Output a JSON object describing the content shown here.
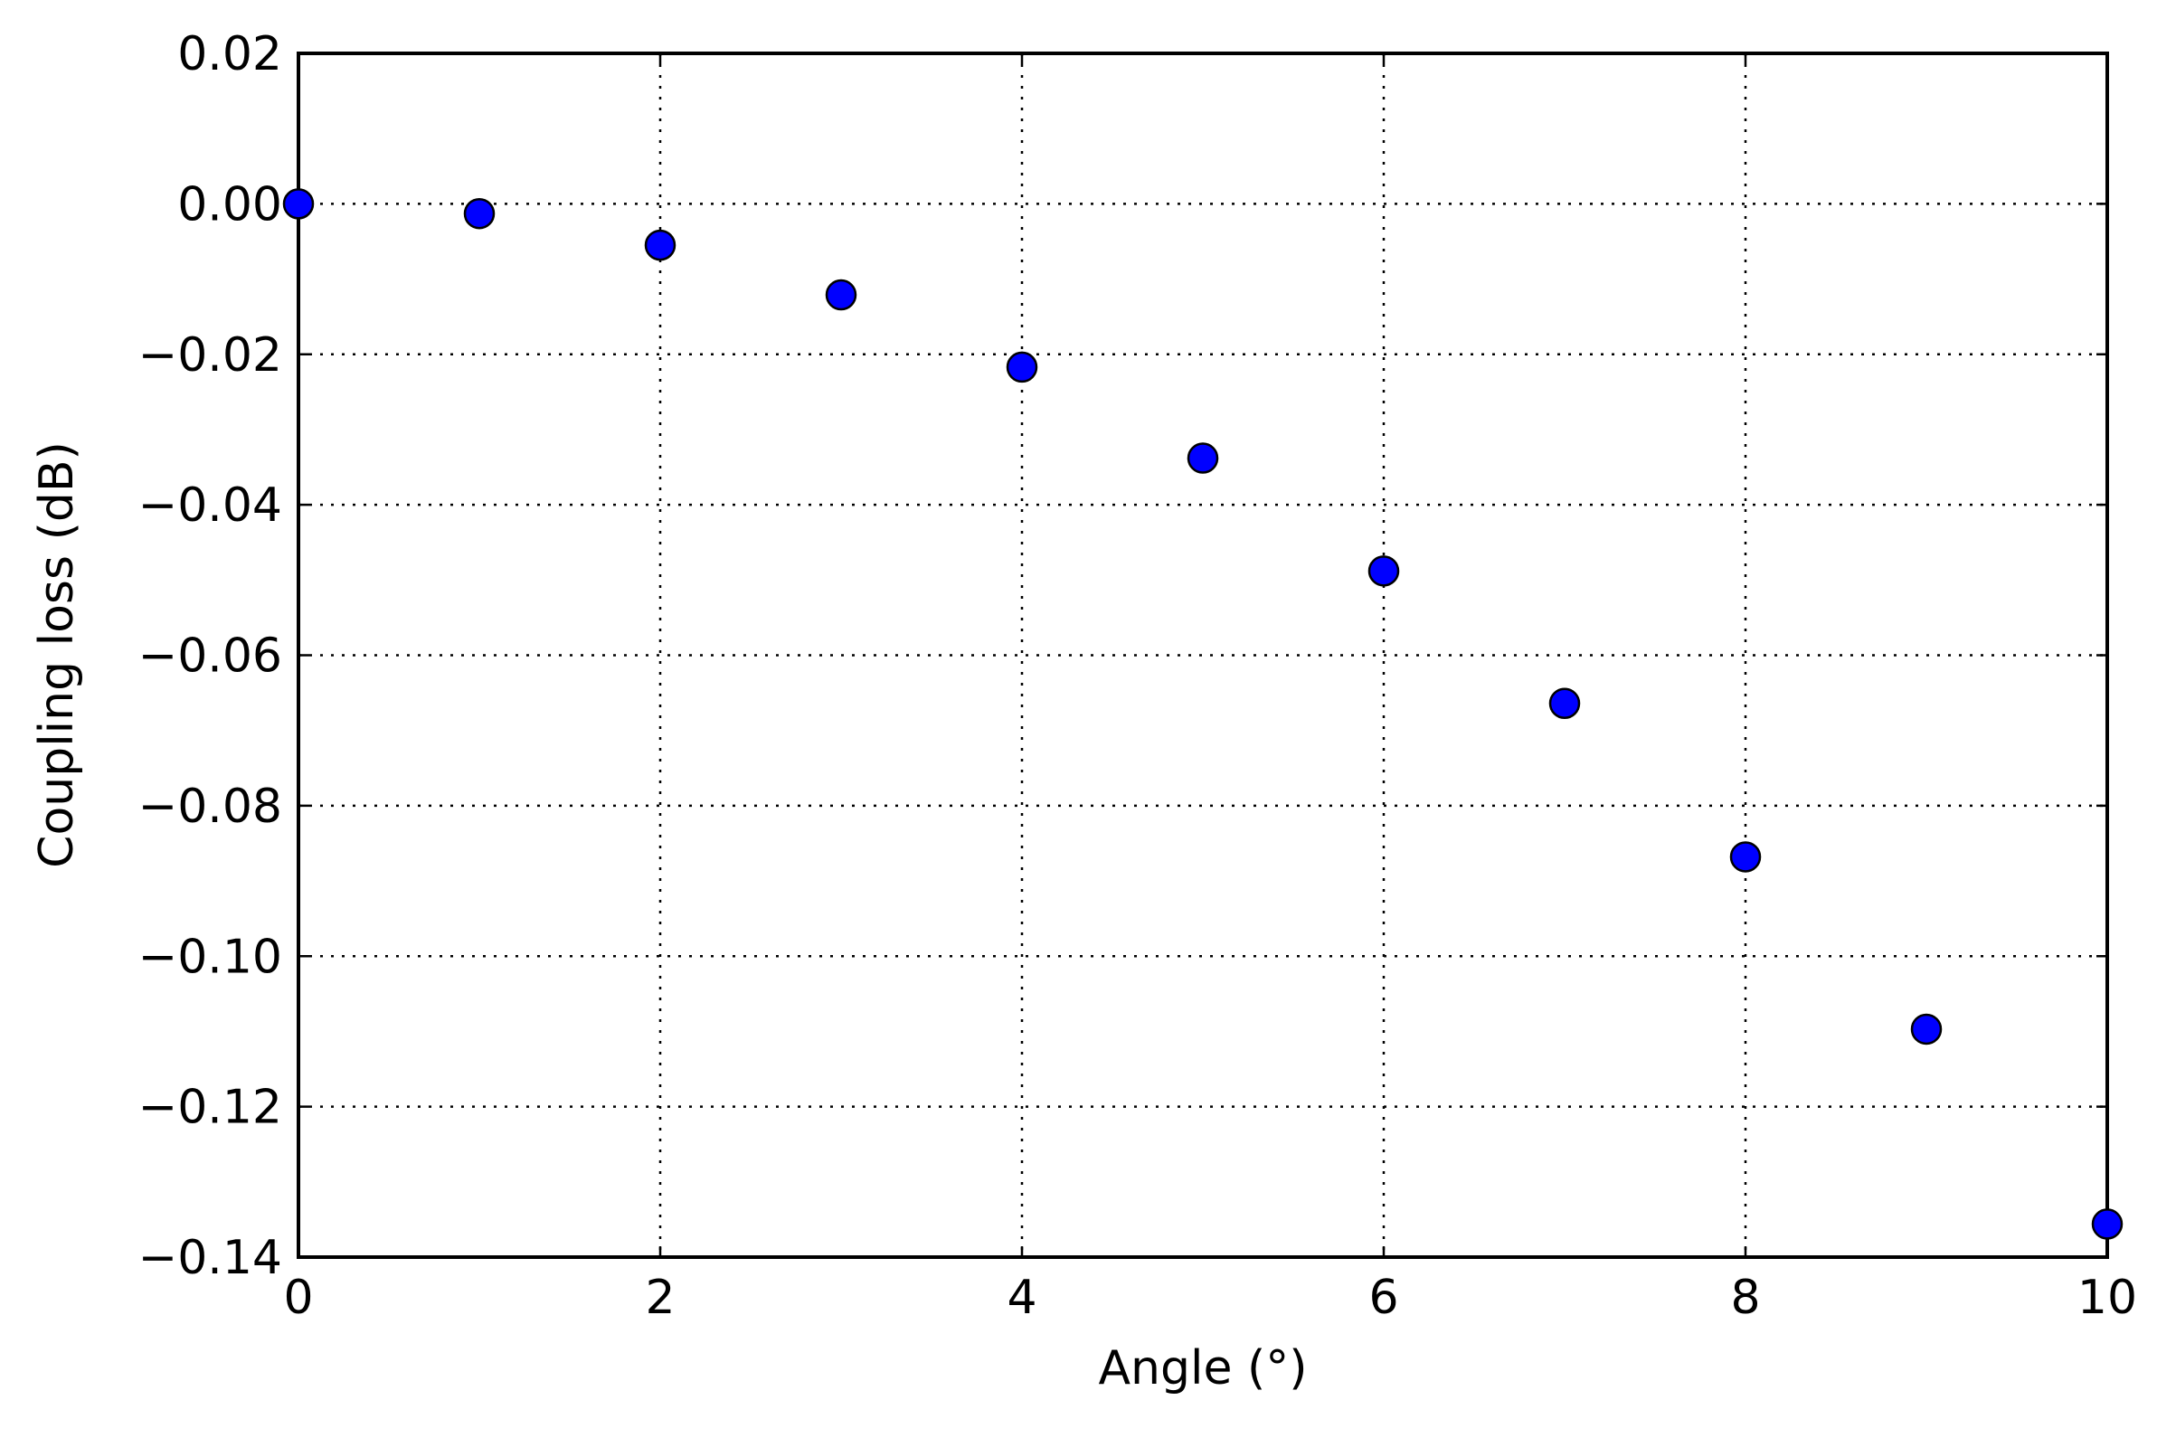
{
  "chart_data": {
    "type": "scatter",
    "x_label": "Angle (°)",
    "y_label": "Coupling loss (dB)",
    "x": [
      0,
      1,
      2,
      3,
      4,
      5,
      6,
      7,
      8,
      9,
      10
    ],
    "series": [
      {
        "color": "#0000ff",
        "values": [
          0,
          -0.0013,
          -0.0055,
          -0.0121,
          -0.0217,
          -0.0338,
          -0.0488,
          -0.0664,
          -0.0868,
          -0.1097,
          -0.1356
        ]
      }
    ],
    "xlim": [
      0,
      10
    ],
    "ylim": [
      -0.14,
      0.02
    ],
    "xticks": [
      0,
      2,
      4,
      6,
      8,
      10
    ],
    "yticks": [
      {
        "value": -0.14,
        "label": "−0.14"
      },
      {
        "value": -0.12,
        "label": "−0.12"
      },
      {
        "value": -0.1,
        "label": "−0.10"
      },
      {
        "value": -0.08,
        "label": "−0.08"
      },
      {
        "value": -0.06,
        "label": "−0.06"
      },
      {
        "value": -0.04,
        "label": "−0.04"
      },
      {
        "value": -0.02,
        "label": "−0.02"
      },
      {
        "value": 0,
        "label": "0.00"
      },
      0.02
    ],
    "grid": true
  }
}
